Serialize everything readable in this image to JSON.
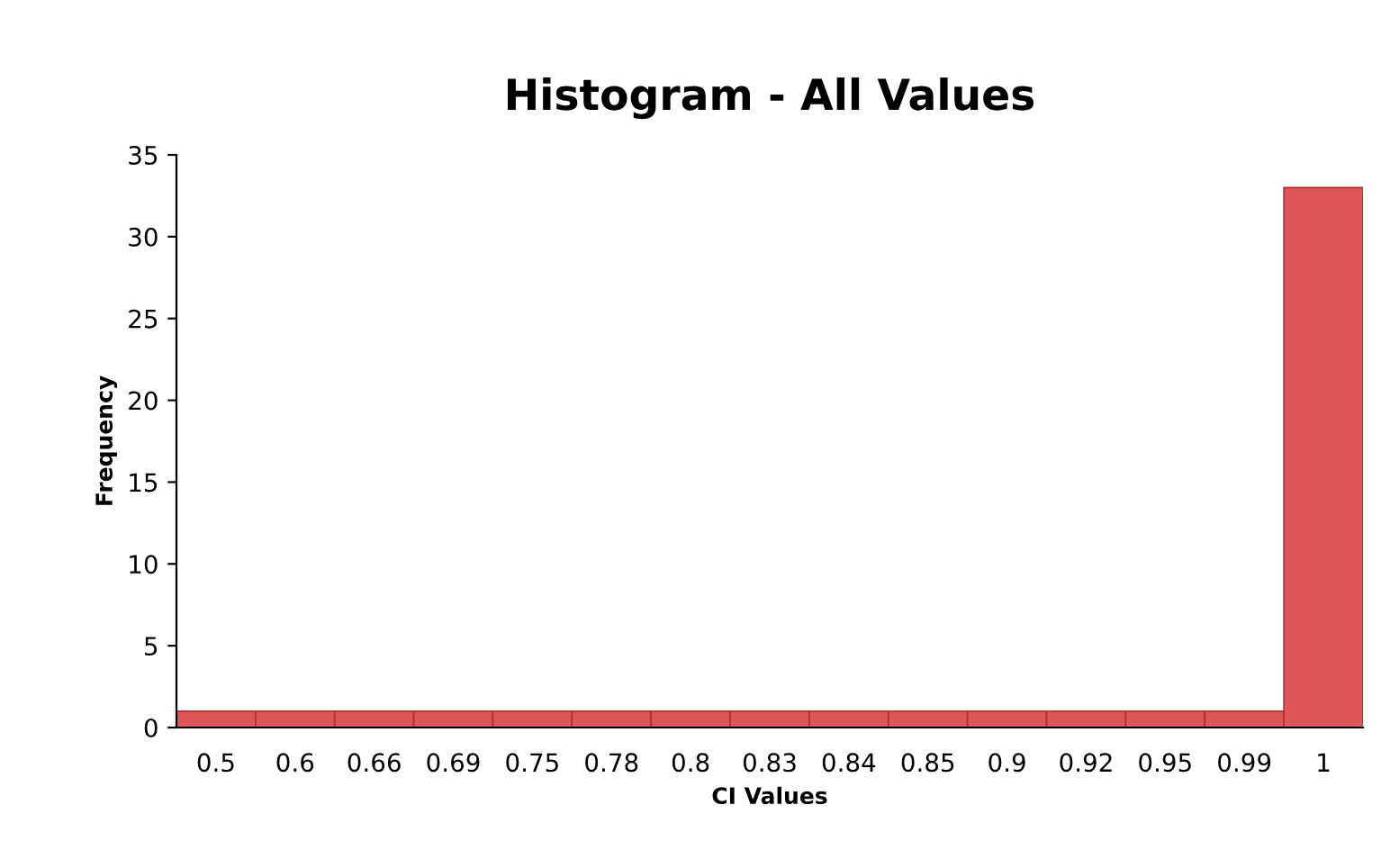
{
  "chart_data": {
    "type": "bar",
    "title": "Histogram - All Values",
    "xlabel": "CI Values",
    "ylabel": "Frequency",
    "categories": [
      "0.5",
      "0.6",
      "0.66",
      "0.69",
      "0.75",
      "0.78",
      "0.8",
      "0.83",
      "0.84",
      "0.85",
      "0.9",
      "0.92",
      "0.95",
      "0.99",
      "1"
    ],
    "values": [
      1,
      1,
      1,
      1,
      1,
      1,
      1,
      1,
      1,
      1,
      1,
      1,
      1,
      1,
      33
    ],
    "color": "#e05555",
    "ylim": [
      0,
      35
    ],
    "yticks": [
      0,
      5,
      10,
      15,
      20,
      25,
      30,
      35
    ],
    "grid": false,
    "legend": false
  }
}
